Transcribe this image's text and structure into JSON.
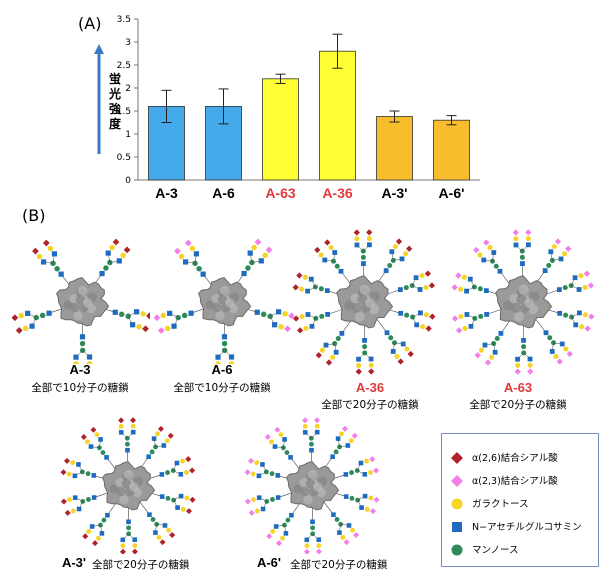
{
  "panel_a_label": "(A)",
  "panel_b_label": "(B)",
  "chart_data": {
    "type": "bar",
    "ylabel": "蛍光強度",
    "ylim": [
      0,
      3.5
    ],
    "yticks": [
      0,
      0.5,
      1,
      1.5,
      2,
      2.5,
      3,
      3.5
    ],
    "categories": [
      "A-3",
      "A-6",
      "A-63",
      "A-36",
      "A-3'",
      "A-6'"
    ],
    "values": [
      1.6,
      1.6,
      2.2,
      2.8,
      1.38,
      1.3
    ],
    "errors": [
      0.35,
      0.38,
      0.1,
      0.37,
      0.12,
      0.1
    ],
    "bar_colors": [
      "#44aaec",
      "#44aaec",
      "#ffff33",
      "#ffff33",
      "#f7bd2d",
      "#f7bd2d"
    ],
    "label_colors": [
      "#000000",
      "#000000",
      "#e03a3a",
      "#e03a3a",
      "#000000",
      "#000000"
    ],
    "grid": false
  },
  "structures": [
    {
      "name": "A-3",
      "caption": "全部で10分子の糖鎖",
      "name_color": "#000000"
    },
    {
      "name": "A-6",
      "caption": "全部で10分子の糖鎖",
      "name_color": "#000000"
    },
    {
      "name": "A-36",
      "caption": "全部で20分子の糖鎖",
      "name_color": "#e03a3a"
    },
    {
      "name": "A-63",
      "caption": "全部で20分子の糖鎖",
      "name_color": "#e03a3a"
    },
    {
      "name": "A-3'",
      "caption": "全部で20分子の糖鎖",
      "name_color": "#000000"
    },
    {
      "name": "A-6'",
      "caption": "全部で20分子の糖鎖",
      "name_color": "#000000"
    }
  ],
  "legend": [
    {
      "label": "α(2,6)結合シアル酸",
      "symbol": "diamond",
      "color": "#b0232a"
    },
    {
      "label": "α(2,3)結合シアル酸",
      "symbol": "diamond",
      "color": "#f47ee8"
    },
    {
      "label": "ガラクトース",
      "symbol": "circle",
      "color": "#f5d327"
    },
    {
      "label": "N−アセチルグルコサミン",
      "symbol": "square",
      "color": "#1f6bc0"
    },
    {
      "label": "マンノース",
      "symbol": "circle",
      "color": "#2f8a5a"
    }
  ]
}
